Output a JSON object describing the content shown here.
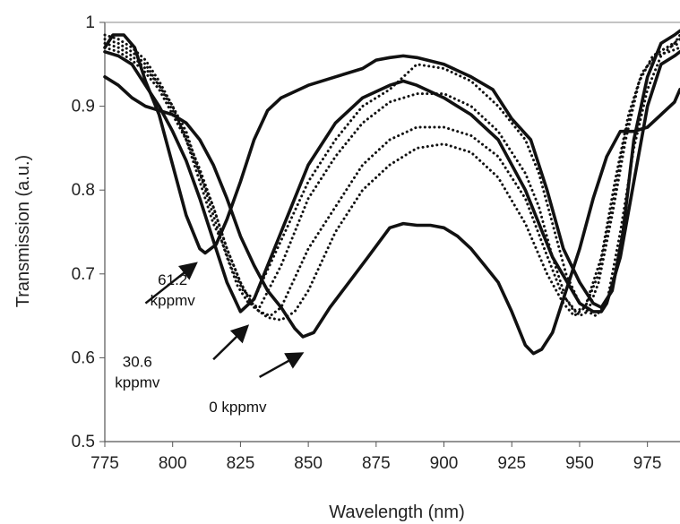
{
  "chart_data": {
    "type": "line",
    "xlabel": "Wavelength (nm)",
    "ylabel": "Transmission (a.u.)",
    "xlim": [
      775,
      987
    ],
    "ylim": [
      0.5,
      1.0
    ],
    "x_ticks": [
      "775",
      "800",
      "825",
      "850",
      "875",
      "900",
      "925",
      "950",
      "975"
    ],
    "y_ticks": [
      "0.5",
      "0.6",
      "0.7",
      "0.8",
      "0.9",
      "1"
    ],
    "grid": false,
    "legend": "none",
    "series": [
      {
        "style": "solid",
        "x": [
          775,
          778,
          782,
          786,
          790,
          795,
          800,
          805,
          810,
          812,
          816,
          820,
          825,
          830,
          835,
          840,
          850,
          860,
          870,
          875,
          880,
          885,
          890,
          900,
          910,
          918,
          925,
          932,
          938,
          944,
          950,
          955,
          958,
          962,
          966,
          970,
          975,
          980,
          985,
          987
        ],
        "y": [
          0.97,
          0.985,
          0.985,
          0.97,
          0.93,
          0.89,
          0.83,
          0.77,
          0.73,
          0.725,
          0.735,
          0.765,
          0.81,
          0.86,
          0.895,
          0.91,
          0.925,
          0.935,
          0.945,
          0.955,
          0.958,
          0.96,
          0.958,
          0.95,
          0.935,
          0.92,
          0.885,
          0.86,
          0.8,
          0.73,
          0.69,
          0.665,
          0.66,
          0.68,
          0.75,
          0.86,
          0.935,
          0.975,
          0.985,
          0.99
        ]
      },
      {
        "style": "solid",
        "x": [
          775,
          780,
          785,
          790,
          795,
          800,
          805,
          810,
          815,
          820,
          825,
          830,
          840,
          850,
          860,
          870,
          880,
          885,
          890,
          900,
          910,
          920,
          930,
          940,
          950,
          955,
          958,
          960,
          965,
          970,
          975,
          980,
          985,
          987
        ],
        "y": [
          0.965,
          0.96,
          0.95,
          0.925,
          0.9,
          0.87,
          0.835,
          0.79,
          0.74,
          0.69,
          0.655,
          0.67,
          0.75,
          0.83,
          0.88,
          0.91,
          0.925,
          0.93,
          0.925,
          0.91,
          0.89,
          0.86,
          0.8,
          0.72,
          0.665,
          0.655,
          0.655,
          0.665,
          0.72,
          0.81,
          0.9,
          0.95,
          0.96,
          0.965
        ]
      },
      {
        "style": "solid",
        "x": [
          775,
          780,
          785,
          790,
          795,
          800,
          805,
          810,
          815,
          820,
          825,
          830,
          835,
          840,
          845,
          848,
          852,
          858,
          865,
          872,
          880,
          885,
          890,
          895,
          900,
          905,
          910,
          915,
          920,
          925,
          930,
          933,
          936,
          940,
          945,
          950,
          955,
          960,
          965,
          970,
          975,
          980,
          985,
          987
        ],
        "y": [
          0.935,
          0.925,
          0.91,
          0.9,
          0.895,
          0.89,
          0.88,
          0.86,
          0.83,
          0.79,
          0.745,
          0.71,
          0.68,
          0.66,
          0.635,
          0.625,
          0.63,
          0.66,
          0.69,
          0.72,
          0.755,
          0.76,
          0.758,
          0.758,
          0.755,
          0.745,
          0.73,
          0.71,
          0.69,
          0.655,
          0.615,
          0.605,
          0.61,
          0.63,
          0.68,
          0.73,
          0.79,
          0.84,
          0.87,
          0.87,
          0.875,
          0.89,
          0.905,
          0.92
        ]
      },
      {
        "style": "dotted",
        "x": [
          775,
          780,
          785,
          790,
          795,
          800,
          805,
          810,
          815,
          818,
          822,
          826,
          830,
          840,
          850,
          860,
          870,
          880,
          890,
          900,
          910,
          920,
          930,
          935,
          940,
          945,
          950,
          953,
          956,
          960,
          965,
          970,
          975,
          980,
          985,
          987
        ],
        "y": [
          0.985,
          0.98,
          0.97,
          0.955,
          0.93,
          0.9,
          0.86,
          0.81,
          0.76,
          0.74,
          0.705,
          0.68,
          0.67,
          0.74,
          0.81,
          0.86,
          0.9,
          0.92,
          0.95,
          0.945,
          0.93,
          0.9,
          0.86,
          0.82,
          0.76,
          0.7,
          0.665,
          0.655,
          0.65,
          0.665,
          0.75,
          0.85,
          0.92,
          0.96,
          0.975,
          0.985
        ]
      },
      {
        "style": "dotted",
        "x": [
          775,
          780,
          785,
          790,
          795,
          800,
          805,
          810,
          815,
          820,
          824,
          828,
          832,
          840,
          850,
          860,
          870,
          880,
          890,
          900,
          910,
          920,
          930,
          935,
          940,
          945,
          950,
          953,
          957,
          962,
          967,
          972,
          977,
          982,
          987
        ],
        "y": [
          0.98,
          0.975,
          0.965,
          0.95,
          0.925,
          0.9,
          0.87,
          0.82,
          0.77,
          0.72,
          0.685,
          0.665,
          0.66,
          0.71,
          0.79,
          0.84,
          0.88,
          0.905,
          0.915,
          0.915,
          0.9,
          0.87,
          0.82,
          0.78,
          0.72,
          0.67,
          0.65,
          0.655,
          0.69,
          0.77,
          0.86,
          0.93,
          0.96,
          0.97,
          0.98
        ]
      },
      {
        "style": "dotted",
        "x": [
          775,
          780,
          785,
          790,
          795,
          800,
          805,
          810,
          815,
          820,
          825,
          828,
          832,
          836,
          840,
          850,
          860,
          870,
          880,
          890,
          900,
          910,
          920,
          930,
          937,
          943,
          948,
          952,
          957,
          962,
          967,
          972,
          977,
          982,
          987
        ],
        "y": [
          0.975,
          0.97,
          0.96,
          0.945,
          0.925,
          0.895,
          0.865,
          0.825,
          0.78,
          0.73,
          0.69,
          0.67,
          0.655,
          0.65,
          0.66,
          0.73,
          0.78,
          0.83,
          0.86,
          0.875,
          0.875,
          0.865,
          0.84,
          0.79,
          0.73,
          0.68,
          0.655,
          0.66,
          0.7,
          0.78,
          0.87,
          0.93,
          0.96,
          0.97,
          0.975
        ]
      },
      {
        "style": "dotted",
        "x": [
          775,
          780,
          785,
          790,
          795,
          800,
          805,
          810,
          815,
          820,
          825,
          830,
          835,
          840,
          845,
          850,
          860,
          870,
          880,
          890,
          900,
          910,
          920,
          930,
          938,
          944,
          948,
          952,
          958,
          963,
          968,
          973,
          978,
          983,
          987
        ],
        "y": [
          0.97,
          0.965,
          0.955,
          0.94,
          0.92,
          0.89,
          0.86,
          0.82,
          0.78,
          0.73,
          0.69,
          0.66,
          0.648,
          0.645,
          0.655,
          0.68,
          0.75,
          0.8,
          0.83,
          0.85,
          0.855,
          0.845,
          0.815,
          0.76,
          0.7,
          0.665,
          0.65,
          0.66,
          0.72,
          0.81,
          0.89,
          0.94,
          0.96,
          0.965,
          0.97
        ]
      }
    ],
    "annotations": [
      {
        "lines": [
          "61.2",
          "kppmv"
        ],
        "text_x": 800,
        "text_y": 0.687,
        "arrow_from": [
          790,
          0.665
        ],
        "arrow_to": [
          808,
          0.711
        ]
      },
      {
        "lines": [
          "30.6",
          "kppmv"
        ],
        "text_x": 787,
        "text_y": 0.589,
        "arrow_from": [
          815,
          0.598
        ],
        "arrow_to": [
          827,
          0.636
        ]
      },
      {
        "lines": [
          "0 kppmv"
        ],
        "text_x": 824,
        "text_y": 0.535,
        "arrow_from": [
          832,
          0.577
        ],
        "arrow_to": [
          847,
          0.604
        ]
      }
    ]
  }
}
